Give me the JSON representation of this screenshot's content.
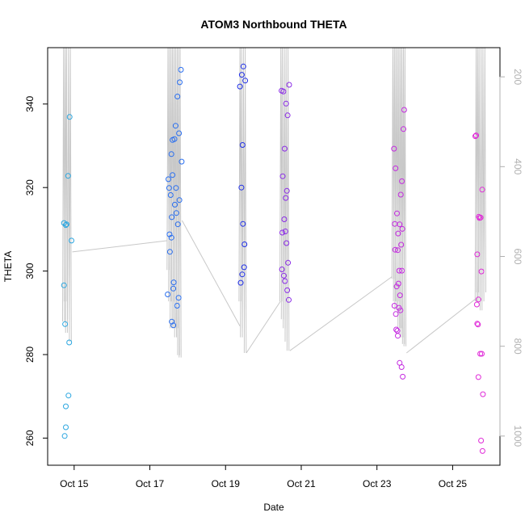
{
  "chart_data": {
    "type": "scatter",
    "title": "ATOM3 Northbound THETA",
    "xlabel": "Date",
    "ylabel": "THETA",
    "x_unit": "days (Oct 2022-style calendar, day-of-month)",
    "xlim": [
      14.3,
      26.25
    ],
    "ylim": [
      253.5,
      353.5
    ],
    "y2lim": [
      1065,
      135
    ],
    "x_ticks": [
      15,
      17,
      19,
      21,
      23,
      25
    ],
    "x_tick_labels": [
      "Oct 15",
      "Oct 17",
      "Oct 19",
      "Oct 21",
      "Oct 23",
      "Oct 25"
    ],
    "y_ticks": [
      260,
      280,
      300,
      320,
      340
    ],
    "y_tick_labels": [
      "260",
      "280",
      "300",
      "320",
      "340"
    ],
    "y2_ticks": [
      200,
      400,
      600,
      800,
      1000
    ],
    "y2_tick_labels": [
      "200",
      "400",
      "600",
      "800",
      "1000"
    ],
    "grid": false,
    "series": [
      {
        "color": "#2aa6e0",
        "points": [
          [
            14.75,
            260.5
          ],
          [
            14.78,
            262.6
          ],
          [
            14.78,
            267.6
          ],
          [
            14.85,
            270.2
          ],
          [
            14.73,
            296.6
          ],
          [
            14.76,
            287.3
          ],
          [
            14.87,
            282.9
          ],
          [
            14.73,
            311.5
          ],
          [
            14.78,
            311.0
          ],
          [
            14.8,
            311.2
          ],
          [
            14.84,
            322.8
          ],
          [
            14.88,
            336.9
          ],
          [
            14.93,
            307.3
          ]
        ]
      },
      {
        "color": "#2a6ff0",
        "points": [
          [
            17.47,
            294.4
          ],
          [
            17.49,
            322.0
          ],
          [
            17.51,
            319.9
          ],
          [
            17.52,
            308.8
          ],
          [
            17.53,
            304.6
          ],
          [
            17.55,
            318.2
          ],
          [
            17.57,
            308.0
          ],
          [
            17.57,
            328.0
          ],
          [
            17.58,
            312.9
          ],
          [
            17.6,
            323.0
          ],
          [
            17.6,
            331.4
          ],
          [
            17.58,
            287.9
          ],
          [
            17.62,
            287.0
          ],
          [
            17.62,
            295.8
          ],
          [
            17.63,
            297.3
          ],
          [
            17.65,
            331.6
          ],
          [
            17.66,
            315.9
          ],
          [
            17.68,
            334.8
          ],
          [
            17.69,
            319.9
          ],
          [
            17.7,
            313.9
          ],
          [
            17.72,
            291.7
          ],
          [
            17.73,
            341.8
          ],
          [
            17.74,
            311.2
          ],
          [
            17.76,
            293.6
          ],
          [
            17.77,
            333.0
          ],
          [
            17.78,
            317.0
          ],
          [
            17.79,
            345.2
          ],
          [
            17.82,
            348.2
          ],
          [
            17.84,
            326.2
          ]
        ]
      },
      {
        "color": "#2030e8",
        "points": [
          [
            19.38,
            344.2
          ],
          [
            19.4,
            297.2
          ],
          [
            19.42,
            320.0
          ],
          [
            19.43,
            347.0
          ],
          [
            19.44,
            299.2
          ],
          [
            19.45,
            330.2
          ],
          [
            19.46,
            311.3
          ],
          [
            19.47,
            349.0
          ],
          [
            19.49,
            300.9
          ],
          [
            19.5,
            306.4
          ],
          [
            19.52,
            345.6
          ]
        ]
      },
      {
        "color": "#8a2ae6",
        "points": [
          [
            20.48,
            343.2
          ],
          [
            20.49,
            300.4
          ],
          [
            20.5,
            309.2
          ],
          [
            20.51,
            322.7
          ],
          [
            20.53,
            343.0
          ],
          [
            20.54,
            298.9
          ],
          [
            20.55,
            312.4
          ],
          [
            20.56,
            329.3
          ],
          [
            20.57,
            297.6
          ],
          [
            20.58,
            309.5
          ],
          [
            20.59,
            317.5
          ],
          [
            20.6,
            340.1
          ],
          [
            20.61,
            306.7
          ],
          [
            20.62,
            319.2
          ],
          [
            20.63,
            295.4
          ],
          [
            20.64,
            337.3
          ],
          [
            20.65,
            302.0
          ],
          [
            20.67,
            293.1
          ],
          [
            20.68,
            344.6
          ]
        ]
      },
      {
        "color": "#c42ae0",
        "points": [
          [
            23.45,
            329.3
          ],
          [
            23.46,
            291.7
          ],
          [
            23.47,
            311.3
          ],
          [
            23.48,
            305.1
          ],
          [
            23.49,
            324.6
          ],
          [
            23.5,
            289.7
          ],
          [
            23.51,
            286.0
          ],
          [
            23.52,
            296.3
          ],
          [
            23.53,
            313.8
          ],
          [
            23.54,
            285.7
          ],
          [
            23.55,
            284.5
          ],
          [
            23.55,
            305.0
          ],
          [
            23.56,
            309.0
          ],
          [
            23.57,
            297.0
          ],
          [
            23.58,
            291.2
          ],
          [
            23.59,
            300.1
          ],
          [
            23.6,
            278.0
          ],
          [
            23.6,
            311.2
          ],
          [
            23.61,
            294.2
          ],
          [
            23.62,
            290.6
          ],
          [
            23.63,
            318.3
          ],
          [
            23.64,
            306.3
          ],
          [
            23.65,
            277.0
          ],
          [
            23.66,
            300.1
          ],
          [
            23.66,
            321.5
          ],
          [
            23.67,
            310.1
          ],
          [
            23.68,
            274.7
          ],
          [
            23.7,
            334.0
          ],
          [
            23.72,
            338.6
          ]
        ]
      },
      {
        "color": "#e02ad8",
        "points": [
          [
            25.6,
            332.3
          ],
          [
            25.62,
            332.5
          ],
          [
            25.64,
            292.0
          ],
          [
            25.65,
            304.0
          ],
          [
            25.65,
            287.4
          ],
          [
            25.67,
            287.2
          ],
          [
            25.68,
            274.6
          ],
          [
            25.68,
            293.2
          ],
          [
            25.69,
            313.0
          ],
          [
            25.71,
            312.7
          ],
          [
            25.73,
            280.2
          ],
          [
            25.74,
            312.8
          ],
          [
            25.75,
            259.4
          ],
          [
            25.76,
            299.9
          ],
          [
            25.77,
            280.2
          ],
          [
            25.78,
            319.5
          ],
          [
            25.79,
            256.9
          ],
          [
            25.8,
            270.5
          ]
        ]
      }
    ],
    "pressure_trace": {
      "color": "#c8c8c8",
      "axis": "right",
      "segments": [
        {
          "x_start": 14.7,
          "x_end": 14.95,
          "kind": "profiles",
          "spikes": [
            [
              14.72,
              135,
              745
            ],
            [
              14.76,
              135,
              700
            ],
            [
              14.8,
              135,
              770
            ],
            [
              14.85,
              135,
              740
            ],
            [
              14.9,
              135,
              790
            ]
          ]
        },
        {
          "x_start": 14.95,
          "x_end": 17.45,
          "kind": "drift",
          "path": [
            [
              14.95,
              590
            ],
            [
              17.45,
              565
            ]
          ]
        },
        {
          "x_start": 17.45,
          "x_end": 17.85,
          "kind": "profiles",
          "spikes": [
            [
              17.48,
              135,
              630
            ],
            [
              17.52,
              135,
              700
            ],
            [
              17.56,
              135,
              760
            ],
            [
              17.6,
              135,
              700
            ],
            [
              17.64,
              135,
              760
            ],
            [
              17.68,
              135,
              780
            ],
            [
              17.72,
              135,
              760
            ],
            [
              17.76,
              135,
              820
            ],
            [
              17.8,
              135,
              825
            ]
          ]
        },
        {
          "x_start": 17.85,
          "x_end": 19.38,
          "kind": "drift",
          "path": [
            [
              17.85,
              520
            ],
            [
              19.38,
              755
            ]
          ]
        },
        {
          "x_start": 19.38,
          "x_end": 19.55,
          "kind": "profiles",
          "spikes": [
            [
              19.38,
              135,
              700
            ],
            [
              19.42,
              135,
              780
            ],
            [
              19.47,
              135,
              760
            ],
            [
              19.52,
              135,
              815
            ]
          ]
        },
        {
          "x_start": 19.55,
          "x_end": 20.45,
          "kind": "drift",
          "path": [
            [
              19.55,
              815
            ],
            [
              20.45,
              700
            ]
          ]
        },
        {
          "x_start": 20.45,
          "x_end": 20.7,
          "kind": "profiles",
          "spikes": [
            [
              20.46,
              135,
              700
            ],
            [
              20.5,
              135,
              740
            ],
            [
              20.55,
              135,
              760
            ],
            [
              20.6,
              135,
              790
            ],
            [
              20.65,
              135,
              810
            ]
          ]
        },
        {
          "x_start": 20.7,
          "x_end": 23.4,
          "kind": "drift",
          "path": [
            [
              20.7,
              810
            ],
            [
              23.4,
              645
            ]
          ]
        },
        {
          "x_start": 23.4,
          "x_end": 23.78,
          "kind": "profiles",
          "spikes": [
            [
              23.42,
              135,
              650
            ],
            [
              23.46,
              135,
              700
            ],
            [
              23.5,
              135,
              720
            ],
            [
              23.54,
              135,
              700
            ],
            [
              23.58,
              135,
              760
            ],
            [
              23.62,
              135,
              760
            ],
            [
              23.66,
              135,
              780
            ],
            [
              23.7,
              135,
              795
            ],
            [
              23.74,
              135,
              800
            ]
          ]
        },
        {
          "x_start": 23.78,
          "x_end": 25.6,
          "kind": "drift",
          "path": [
            [
              23.78,
              815
            ],
            [
              25.6,
              695
            ]
          ]
        },
        {
          "x_start": 25.6,
          "x_end": 25.9,
          "kind": "profiles",
          "spikes": [
            [
              25.62,
              135,
              700
            ],
            [
              25.66,
              135,
              680
            ],
            [
              25.7,
              135,
              700
            ],
            [
              25.75,
              135,
              720
            ],
            [
              25.8,
              135,
              700
            ],
            [
              25.85,
              135,
              680
            ]
          ]
        }
      ]
    }
  }
}
